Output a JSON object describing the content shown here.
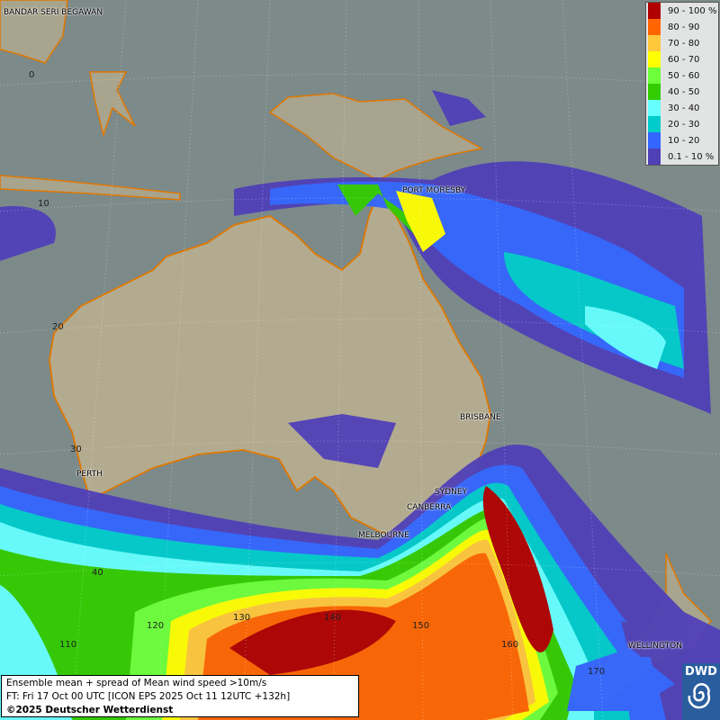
{
  "legend": {
    "items": [
      {
        "label": "90 - 100 %",
        "color": "#b00000"
      },
      {
        "label": "80 - 90",
        "color": "#ff6600"
      },
      {
        "label": "70 - 80",
        "color": "#ffc83c"
      },
      {
        "label": "60 - 70",
        "color": "#ffff00"
      },
      {
        "label": "50 - 60",
        "color": "#6cff3a"
      },
      {
        "label": "40 - 50",
        "color": "#33cc00"
      },
      {
        "label": "30 - 40",
        "color": "#66ffff"
      },
      {
        "label": "20 - 30",
        "color": "#00cccc"
      },
      {
        "label": "10 - 20",
        "color": "#3366ff"
      },
      {
        "label": "0.1 - 10 %",
        "color": "#5040b8"
      }
    ]
  },
  "cities": {
    "bandar": "BANDAR SERI BEGAWAN",
    "port_moresby": "PORT MORESBY",
    "brisbane": "BRISBANE",
    "sydney": "SYDNEY",
    "canberra": "CANBERRA",
    "melbourne": "MELBOURNE",
    "perth": "PERTH",
    "wellington": "WELLINGTON"
  },
  "grid": {
    "lat": [
      "0",
      "10",
      "20",
      "30",
      "40"
    ],
    "lon": [
      "110",
      "120",
      "130",
      "140",
      "150",
      "160",
      "170"
    ]
  },
  "info": {
    "line1": "Ensemble mean + spread of Mean wind speed >10m/s",
    "line2": "FT: Fri 17 Oct 00 UTC [ICON EPS 2025 Oct 11 12UTC +132h]",
    "line3": "©2025 Deutscher Wetterdienst"
  },
  "logo": {
    "text": "DWD"
  }
}
